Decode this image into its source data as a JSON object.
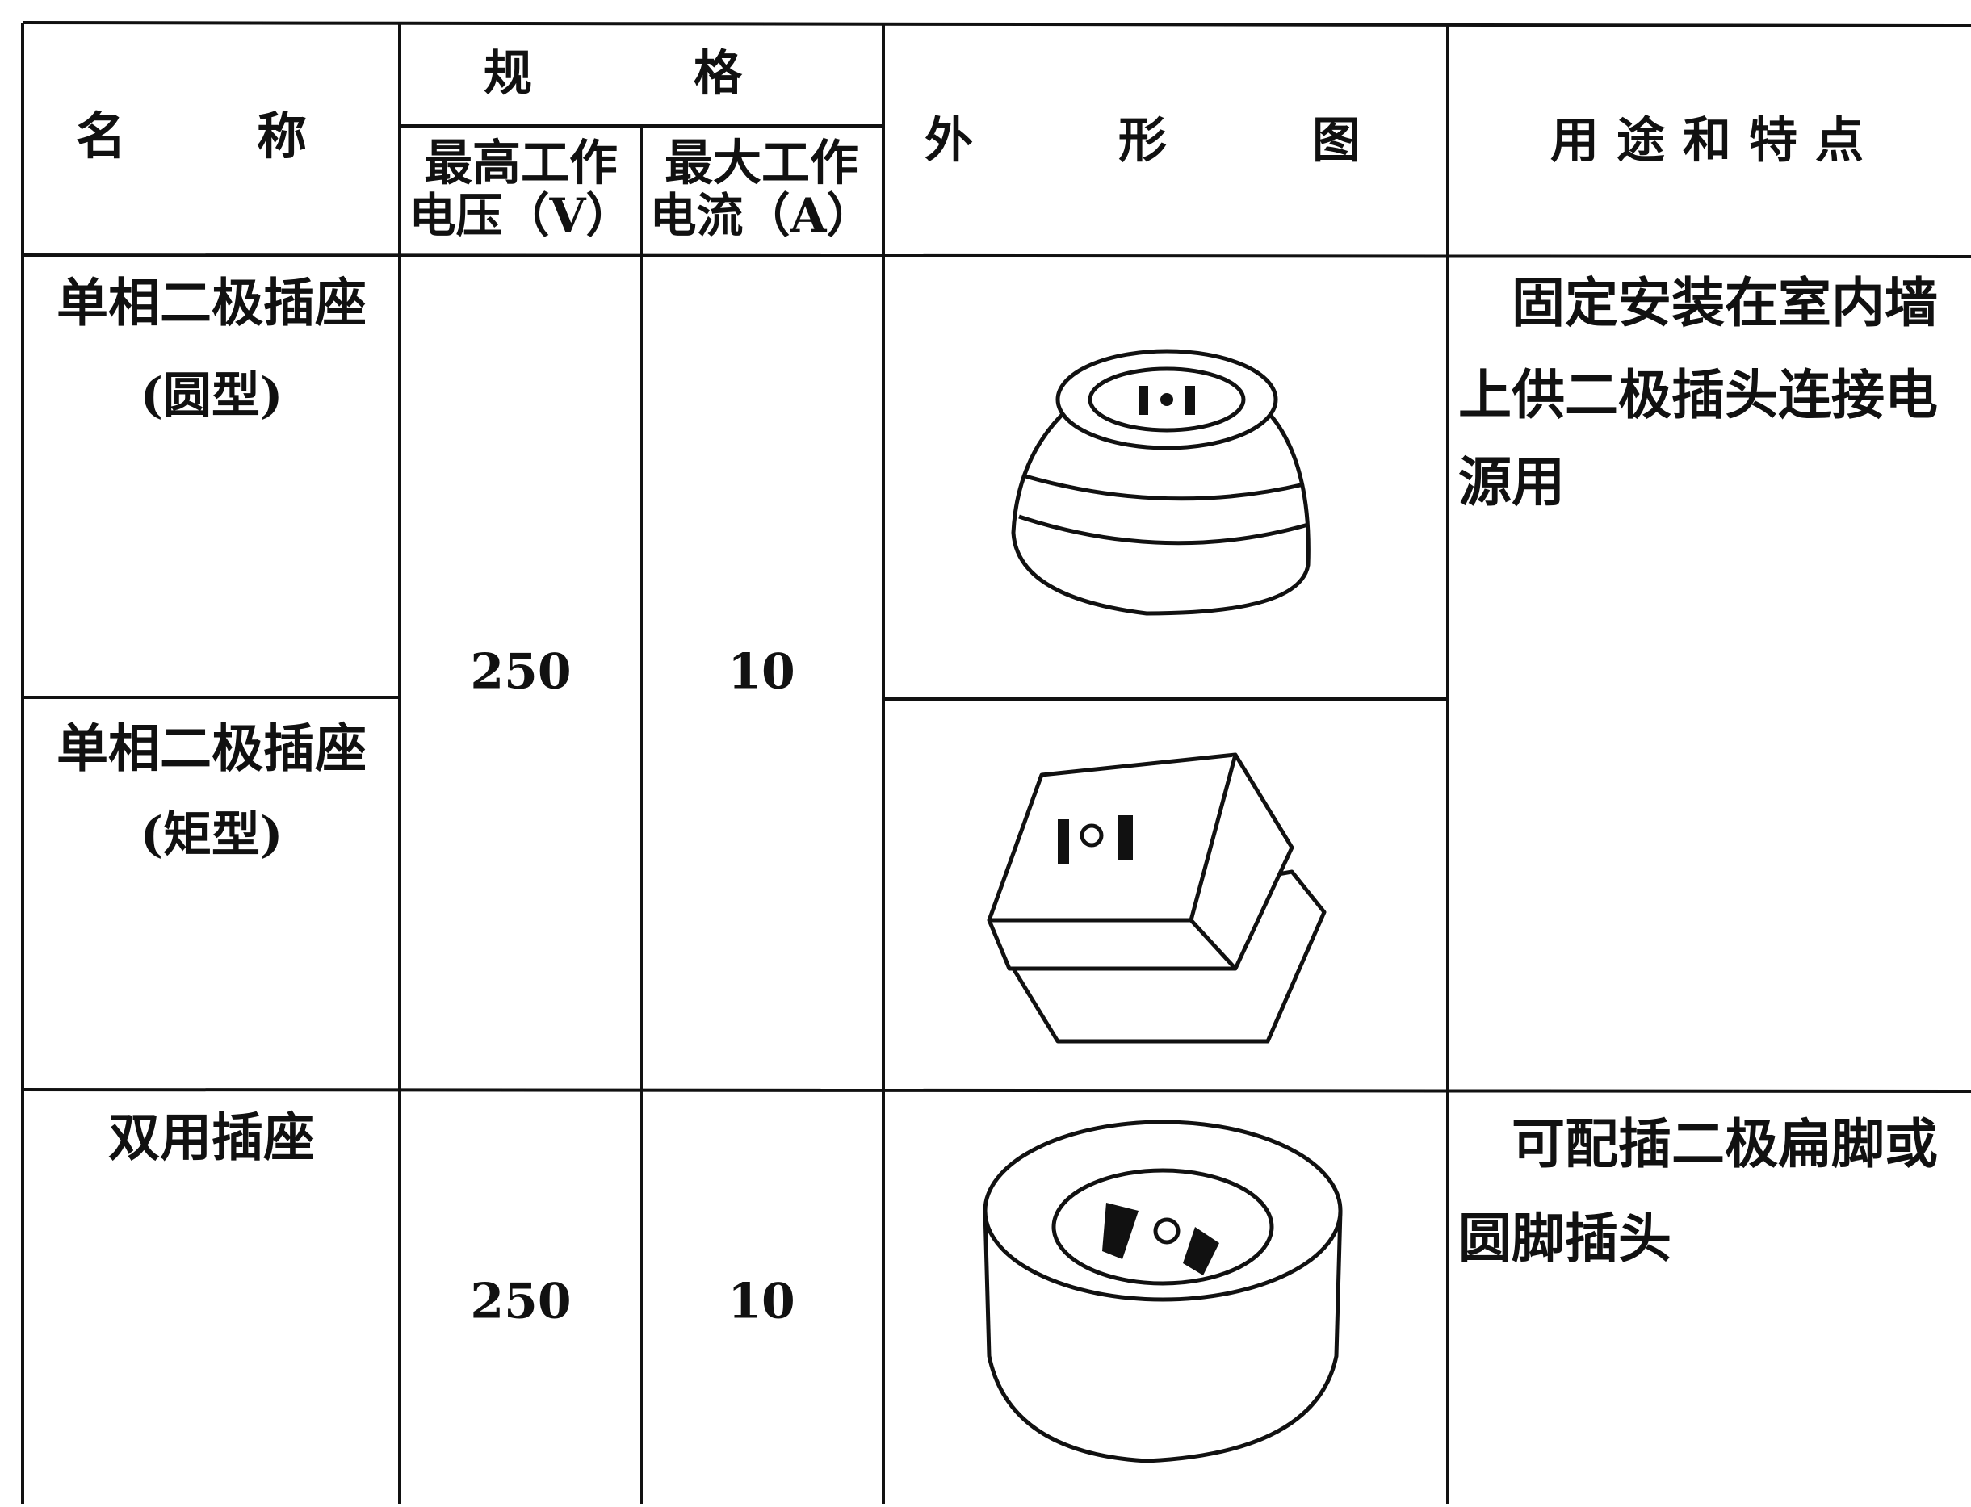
{
  "header": {
    "name": "名　称",
    "spec": "规　格",
    "max_voltage": [
      "最高工作",
      "电压（V）"
    ],
    "max_current": [
      "最大工作",
      "电流（A）"
    ],
    "figure": "外　形　图",
    "usage": "用途和特点"
  },
  "rows": [
    {
      "name": [
        "单相二极插座",
        "(圆型)"
      ]
    },
    {
      "name": [
        "单相二极插座",
        "(矩型)"
      ]
    },
    {
      "name": [
        "双用插座"
      ]
    }
  ],
  "groups": [
    {
      "voltage": 250,
      "current": 10,
      "usage": [
        "　固定安装在室内墙",
        "上供二极插头连接电",
        "源用"
      ]
    },
    {
      "voltage": 250,
      "current": 10,
      "usage": [
        "　可配插二极扁脚或",
        "圆脚插头"
      ]
    }
  ]
}
